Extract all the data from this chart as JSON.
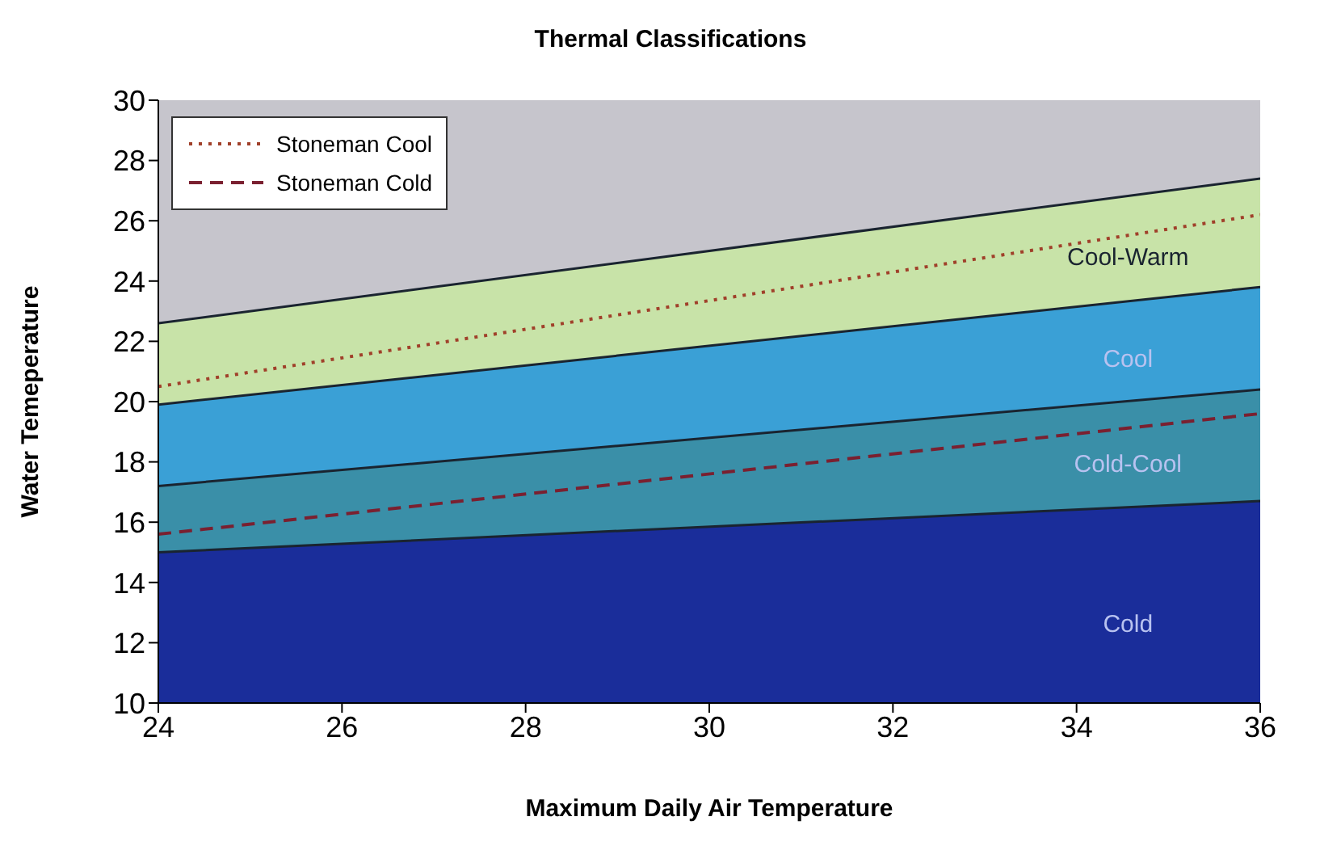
{
  "chart_data": {
    "type": "area",
    "title": "Thermal Classifications",
    "xlabel": "Maximum Daily Air Temperature",
    "ylabel": "Water Temeperature",
    "x": [
      24,
      36
    ],
    "series": [
      {
        "name": "Cool-Warm",
        "color": "#c8e3a8",
        "values": [
          22.6,
          27.4
        ]
      },
      {
        "name": "Cool",
        "color": "#3aa0d6",
        "values": [
          19.9,
          23.8
        ]
      },
      {
        "name": "Cold-Cool",
        "color": "#3a8fa8",
        "values": [
          17.2,
          20.4
        ]
      },
      {
        "name": "Cold",
        "color": "#1a2d9a",
        "values": [
          15.0,
          16.7
        ]
      },
      {
        "name": "Stoneman Cool",
        "type": "line",
        "color": "#a0402a",
        "line_style": "dotted",
        "values": [
          20.5,
          26.2
        ]
      },
      {
        "name": "Stoneman Cold",
        "type": "line",
        "color": "#7a2030",
        "line_style": "dashed",
        "values": [
          15.6,
          19.6
        ]
      }
    ],
    "xlim": [
      24,
      36
    ],
    "xticks": [
      24,
      26,
      28,
      30,
      32,
      34,
      36
    ],
    "ylim": [
      10,
      30
    ],
    "yticks": [
      10,
      12,
      14,
      16,
      18,
      20,
      22,
      24,
      26,
      28,
      30
    ],
    "grid": false,
    "legend": "top left"
  }
}
